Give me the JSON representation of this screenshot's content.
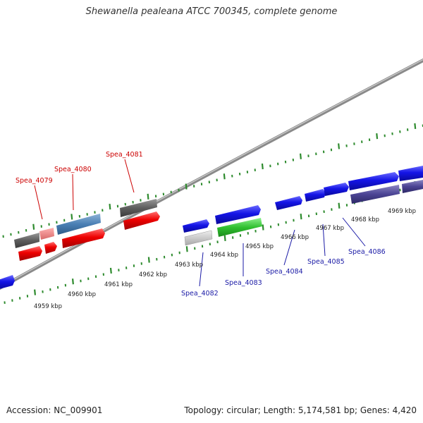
{
  "title": "Shewanella pealeana ATCC 700345, complete genome",
  "footer": {
    "accession": "Accession: NC_009901",
    "summary": "Topology: circular; Length: 5,174,581 bp; Genes: 4,420"
  },
  "colors": {
    "backbone": "#8a8a8a",
    "tick": "#2e8b2e",
    "upper_label": "#cc0000",
    "lower_label": "#1a1aa6"
  },
  "map": {
    "kbp_labels": [
      {
        "label": "4959 kbp"
      },
      {
        "label": "4960 kbp"
      },
      {
        "label": "4961 kbp"
      },
      {
        "label": "4962 kbp"
      },
      {
        "label": "4963 kbp"
      },
      {
        "label": "4964 kbp"
      },
      {
        "label": "4965 kbp"
      },
      {
        "label": "4966 kbp"
      },
      {
        "label": "4967 kbp"
      },
      {
        "label": "4968 kbp"
      },
      {
        "label": "4969 kbp"
      }
    ],
    "upper_labels": [
      {
        "text": "Spea_4079"
      },
      {
        "text": "Spea_4080"
      },
      {
        "text": "Spea_4081"
      }
    ],
    "lower_labels": [
      {
        "text": "Spea_4082"
      },
      {
        "text": "Spea_4083"
      },
      {
        "text": "Spea_4084"
      },
      {
        "text": "Spea_4085"
      },
      {
        "text": "Spea_4086"
      }
    ]
  }
}
